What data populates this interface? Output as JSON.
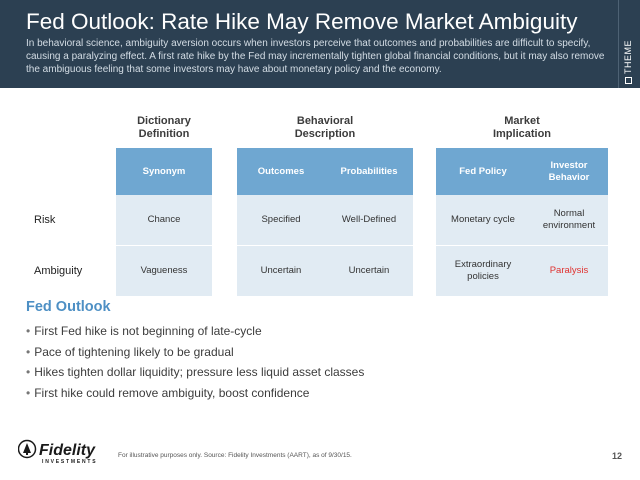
{
  "header": {
    "title": "Fed Outlook: Rate Hike May Remove Market Ambiguity",
    "subtitle": "In behavioral science, ambiguity aversion occurs when investors perceive that outcomes and probabilities are difficult to specify, causing a paralyzing effect. A first rate hike by the Fed may incrementally tighten global financial conditions, but it may also remove the ambiguous feeling that some investors may have about monetary policy and the economy.",
    "theme_label": "THEME",
    "theme_icon": "checkbox-square-icon"
  },
  "table": {
    "groups": [
      {
        "label": "Dictionary\nDefinition"
      },
      {
        "label": "Behavioral\nDescription"
      },
      {
        "label": "Market\nImplication"
      }
    ],
    "columns": [
      "Synonym",
      "Outcomes",
      "Probabilities",
      "Fed Policy",
      "Investor\nBehavior"
    ],
    "rows": [
      {
        "label": "Risk",
        "cells": [
          "Chance",
          "Specified",
          "Well-Defined",
          "Monetary cycle",
          "Normal\nenvironment"
        ]
      },
      {
        "label": "Ambiguity",
        "cells": [
          "Vagueness",
          "Uncertain",
          "Uncertain",
          "Extraordinary\npolicies",
          "Paralysis"
        ]
      }
    ],
    "colors": {
      "header_fill": "#6fa7d1",
      "band_fill": "#e1ebf3",
      "highlight_text": "#e03230"
    }
  },
  "outlook": {
    "title": "Fed Outlook",
    "bullets": [
      "First Fed hike is not beginning of late-cycle",
      "Pace of tightening likely to be gradual",
      "Hikes tighten dollar liquidity; pressure less liquid asset classes",
      "First hike could remove ambiguity, boost confidence"
    ]
  },
  "footer": {
    "logo_text": "Fidelity",
    "logo_subtext": "INVESTMENTS",
    "source": "For illustrative purposes only. Source: Fidelity Investments (AART), as of 9/30/15.",
    "page_number": "12"
  },
  "colors": {
    "header_bg": "#2c4052",
    "accent": "#4d8fc4"
  }
}
